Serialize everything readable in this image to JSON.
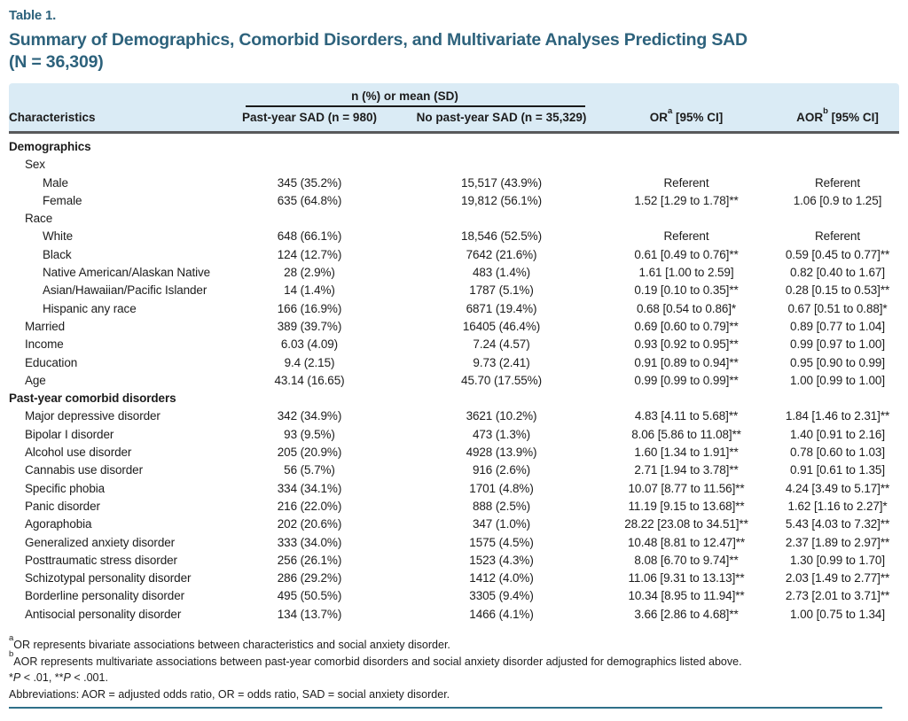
{
  "colors": {
    "accent_teal": "#2d627c",
    "header_band": "#daebf5",
    "bottom_rule": "#2f7089"
  },
  "table_label": "Table 1.",
  "title_line1": "Summary of Demographics, Comorbid Disorders, and Multivariate Analyses Predicting SAD",
  "title_line2": "(N = 36,309)",
  "header": {
    "span_label": "n (%) or mean (SD)",
    "characteristics": "Characteristics",
    "col_past_year": "Past-year SAD (n = 980)",
    "col_no_past_year": "No past-year SAD (n = 35,329)",
    "or": {
      "pre": "OR",
      "sup": "a",
      "post": " [95% CI]"
    },
    "aor": {
      "pre": "AOR",
      "sup": "b",
      "post": " [95% CI]"
    }
  },
  "rows": [
    {
      "label": "Demographics",
      "level": 0,
      "bold": true,
      "cells": [
        "",
        "",
        "",
        ""
      ]
    },
    {
      "label": "Sex",
      "level": 1,
      "bold": false,
      "cells": [
        "",
        "",
        "",
        ""
      ]
    },
    {
      "label": "Male",
      "level": 2,
      "bold": false,
      "cells": [
        "345 (35.2%)",
        "15,517 (43.9%)",
        "Referent",
        "Referent"
      ]
    },
    {
      "label": "Female",
      "level": 2,
      "bold": false,
      "cells": [
        "635 (64.8%)",
        "19,812 (56.1%)",
        "1.52 [1.29 to 1.78]**",
        "1.06 [0.9 to 1.25]"
      ]
    },
    {
      "label": "Race",
      "level": 1,
      "bold": false,
      "cells": [
        "",
        "",
        "",
        ""
      ]
    },
    {
      "label": "White",
      "level": 2,
      "bold": false,
      "cells": [
        "648 (66.1%)",
        "18,546 (52.5%)",
        "Referent",
        "Referent"
      ]
    },
    {
      "label": "Black",
      "level": 2,
      "bold": false,
      "cells": [
        "124 (12.7%)",
        "7642 (21.6%)",
        "0.61 [0.49 to 0.76]**",
        "0.59 [0.45 to 0.77]**"
      ]
    },
    {
      "label": "Native American/Alaskan Native",
      "level": 2,
      "bold": false,
      "cells": [
        "28 (2.9%)",
        "483 (1.4%)",
        "1.61 [1.00 to 2.59]",
        "0.82 [0.40 to 1.67]"
      ]
    },
    {
      "label": "Asian/Hawaiian/Pacific Islander",
      "level": 2,
      "bold": false,
      "cells": [
        "14 (1.4%)",
        "1787 (5.1%)",
        "0.19 [0.10 to 0.35]**",
        "0.28 [0.15 to 0.53]**"
      ]
    },
    {
      "label": "Hispanic any race",
      "level": 2,
      "bold": false,
      "cells": [
        "166 (16.9%)",
        "6871 (19.4%)",
        "0.68 [0.54 to 0.86]*",
        "0.67 [0.51 to 0.88]*"
      ]
    },
    {
      "label": "Married",
      "level": 1,
      "bold": false,
      "cells": [
        "389 (39.7%)",
        "16405 (46.4%)",
        "0.69 [0.60 to 0.79]**",
        "0.89 [0.77 to 1.04]"
      ]
    },
    {
      "label": "Income",
      "level": 1,
      "bold": false,
      "cells": [
        "6.03 (4.09)",
        "7.24 (4.57)",
        "0.93 [0.92 to 0.95]**",
        "0.99 [0.97 to 1.00]"
      ]
    },
    {
      "label": "Education",
      "level": 1,
      "bold": false,
      "cells": [
        "9.4 (2.15)",
        "9.73 (2.41)",
        "0.91 [0.89 to 0.94]**",
        "0.95 [0.90 to 0.99]"
      ]
    },
    {
      "label": "Age",
      "level": 1,
      "bold": false,
      "cells": [
        "43.14 (16.65)",
        "45.70 (17.55%)",
        "0.99 [0.99 to 0.99]**",
        "1.00 [0.99 to 1.00]"
      ]
    },
    {
      "label": "Past-year comorbid disorders",
      "level": 0,
      "bold": true,
      "cells": [
        "",
        "",
        "",
        ""
      ]
    },
    {
      "label": "Major depressive disorder",
      "level": 1,
      "bold": false,
      "cells": [
        "342 (34.9%)",
        "3621 (10.2%)",
        "4.83 [4.11 to 5.68]**",
        "1.84 [1.46 to 2.31]**"
      ]
    },
    {
      "label": "Bipolar I disorder",
      "level": 1,
      "bold": false,
      "cells": [
        "93 (9.5%)",
        "473 (1.3%)",
        "8.06 [5.86 to 11.08]**",
        "1.40 [0.91 to 2.16]"
      ]
    },
    {
      "label": "Alcohol use disorder",
      "level": 1,
      "bold": false,
      "cells": [
        "205 (20.9%)",
        "4928 (13.9%)",
        "1.60 [1.34 to 1.91]**",
        "0.78 [0.60 to 1.03]"
      ]
    },
    {
      "label": "Cannabis use disorder",
      "level": 1,
      "bold": false,
      "cells": [
        "56 (5.7%)",
        "916 (2.6%)",
        "2.71 [1.94 to 3.78]**",
        "0.91 [0.61 to 1.35]"
      ]
    },
    {
      "label": "Specific phobia",
      "level": 1,
      "bold": false,
      "cells": [
        "334 (34.1%)",
        "1701 (4.8%)",
        "10.07 [8.77 to 11.56]**",
        "4.24 [3.49 to 5.17]**"
      ]
    },
    {
      "label": "Panic disorder",
      "level": 1,
      "bold": false,
      "cells": [
        "216 (22.0%)",
        "888 (2.5%)",
        "11.19 [9.15 to 13.68]**",
        "1.62 [1.16 to 2.27]*"
      ]
    },
    {
      "label": "Agoraphobia",
      "level": 1,
      "bold": false,
      "cells": [
        "202 (20.6%)",
        "347 (1.0%)",
        "28.22 [23.08 to 34.51]**",
        "5.43 [4.03 to 7.32]**"
      ]
    },
    {
      "label": "Generalized anxiety disorder",
      "level": 1,
      "bold": false,
      "cells": [
        "333 (34.0%)",
        "1575 (4.5%)",
        "10.48 [8.81 to 12.47]**",
        "2.37 [1.89 to 2.97]**"
      ]
    },
    {
      "label": "Posttraumatic stress disorder",
      "level": 1,
      "bold": false,
      "cells": [
        "256 (26.1%)",
        "1523 (4.3%)",
        "8.08 [6.70 to 9.74]**",
        "1.30 [0.99 to 1.70]"
      ]
    },
    {
      "label": "Schizotypal personality disorder",
      "level": 1,
      "bold": false,
      "cells": [
        "286 (29.2%)",
        "1412 (4.0%)",
        "11.06 [9.31 to 13.13]**",
        "2.03 [1.49 to 2.77]**"
      ]
    },
    {
      "label": "Borderline personality disorder",
      "level": 1,
      "bold": false,
      "cells": [
        "495 (50.5%)",
        "3305 (9.4%)",
        "10.34 [8.95 to 11.94]**",
        "2.73 [2.01 to 3.71]**"
      ]
    },
    {
      "label": "Antisocial personality disorder",
      "level": 1,
      "bold": false,
      "cells": [
        "134 (13.7%)",
        "1466 (4.1%)",
        "3.66 [2.86 to 4.68]**",
        "1.00 [0.75 to 1.34]"
      ]
    }
  ],
  "footnotes": [
    {
      "sup": "a",
      "text": "OR represents bivariate associations between characteristics and social anxiety disorder."
    },
    {
      "sup": "b",
      "text": "AOR represents multivariate associations between past-year comorbid disorders and social anxiety disorder adjusted for demographics listed above."
    },
    {
      "parts": [
        {
          "t": "*"
        },
        {
          "t": "P",
          "i": true
        },
        {
          "t": " < .01, **"
        },
        {
          "t": "P",
          "i": true
        },
        {
          "t": " < .001."
        }
      ]
    },
    {
      "text": "Abbreviations: AOR = adjusted odds ratio, OR = odds ratio, SAD = social anxiety disorder."
    }
  ]
}
